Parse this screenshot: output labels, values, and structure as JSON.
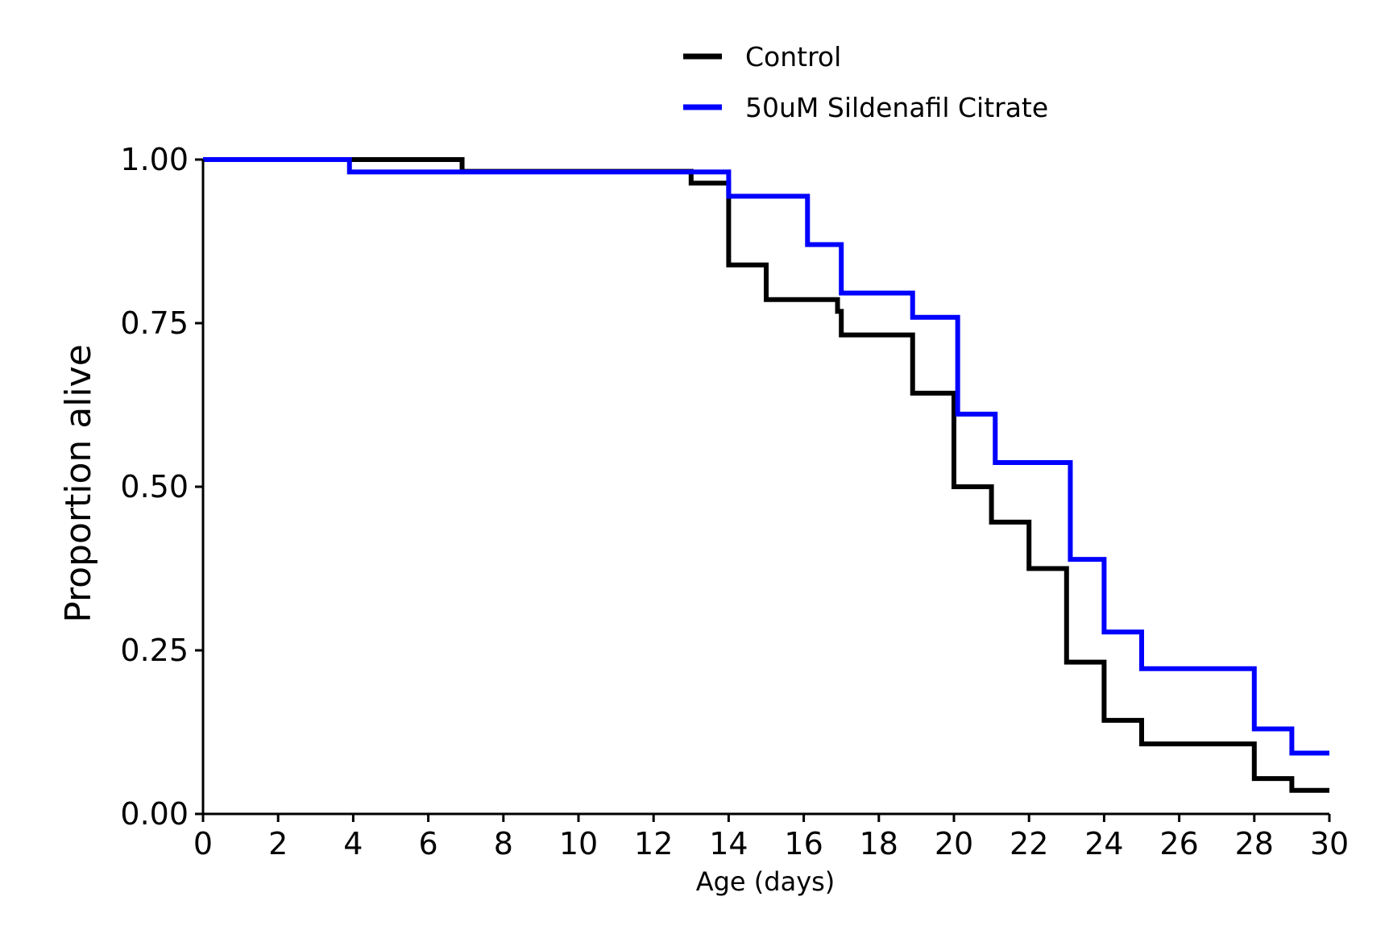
{
  "chart_data": {
    "type": "line",
    "step": true,
    "title": "",
    "xlabel": "Age (days)",
    "ylabel": "Proportion alive",
    "xlim": [
      0,
      30
    ],
    "ylim": [
      0,
      1
    ],
    "xticks": [
      0,
      2,
      4,
      6,
      8,
      10,
      12,
      14,
      16,
      18,
      20,
      22,
      24,
      26,
      28,
      30
    ],
    "xtick_labels": [
      "0",
      "2",
      "4",
      "6",
      "8",
      "10",
      "12",
      "14",
      "16",
      "18",
      "20",
      "22",
      "24",
      "26",
      "28",
      "30"
    ],
    "yticks": [
      0,
      0.25,
      0.5,
      0.75,
      1.0
    ],
    "ytick_labels": [
      "0.00",
      "0.25",
      "0.50",
      "0.75",
      "1.00"
    ],
    "grid": false,
    "legend_position": "top-center",
    "series": [
      {
        "name": "Control",
        "color": "#000000",
        "x": [
          0,
          6.9,
          13,
          14,
          15,
          16.9,
          17,
          18.9,
          20,
          21,
          22,
          23,
          24,
          25,
          28,
          29,
          30
        ],
        "y": [
          1.0,
          0.982,
          0.964,
          0.839,
          0.786,
          0.768,
          0.732,
          0.643,
          0.5,
          0.446,
          0.375,
          0.232,
          0.143,
          0.107,
          0.054,
          0.036,
          0.036
        ]
      },
      {
        "name": "50uM Sildenafil Citrate",
        "color": "#0000ff",
        "x": [
          0,
          3.9,
          14,
          16.1,
          17,
          18.9,
          20.1,
          21.1,
          23.1,
          24,
          25,
          28,
          29,
          30
        ],
        "y": [
          1.0,
          0.981,
          0.944,
          0.87,
          0.796,
          0.759,
          0.611,
          0.537,
          0.389,
          0.278,
          0.222,
          0.13,
          0.093,
          0.093
        ]
      }
    ]
  }
}
